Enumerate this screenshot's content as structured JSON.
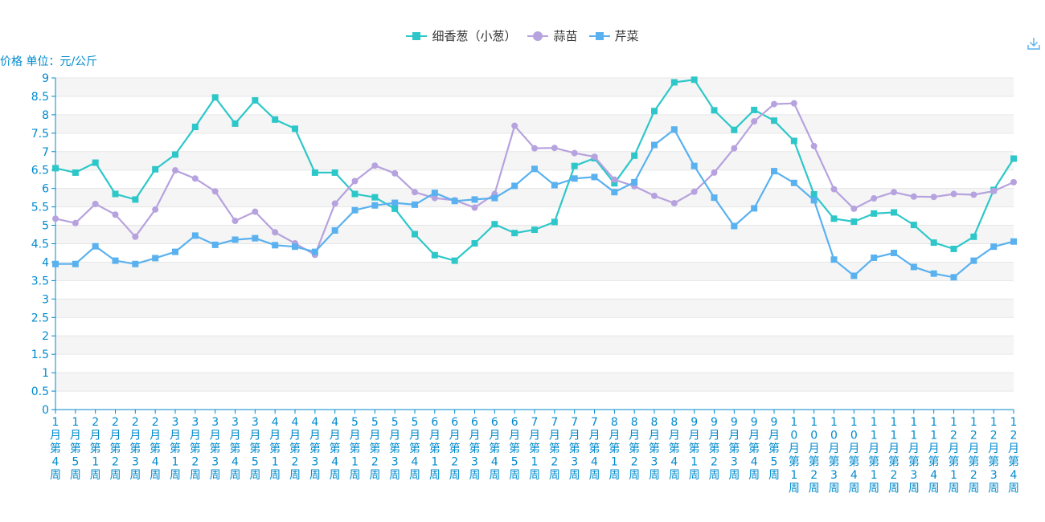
{
  "chart_data": {
    "type": "line",
    "unit_label": "价格 单位：元/公斤",
    "ylim": [
      0,
      9
    ],
    "y_ticks": [
      "0",
      "0.5",
      "1",
      "1.5",
      "2",
      "2.5",
      "3",
      "3.5",
      "4",
      "4.5",
      "5",
      "5.5",
      "6",
      "6.5",
      "7",
      "7.5",
      "8",
      "8.5",
      "9"
    ],
    "categories": [
      "1月第4周",
      "1月第5周",
      "2月第1周",
      "2月第2周",
      "2月第3周",
      "2月第4周",
      "3月第1周",
      "3月第2周",
      "3月第3周",
      "3月第4周",
      "3月第5周",
      "4月第1周",
      "4月第2周",
      "4月第3周",
      "4月第4周",
      "5月第1周",
      "5月第2周",
      "5月第3周",
      "5月第4周",
      "6月第1周",
      "6月第2周",
      "6月第3周",
      "6月第4周",
      "6月第5周",
      "7月第1周",
      "7月第2周",
      "7月第3周",
      "7月第4周",
      "8月第1周",
      "8月第2周",
      "8月第3周",
      "8月第4周",
      "9月第1周",
      "9月第2周",
      "9月第3周",
      "9月第4周",
      "9月第5周",
      "10月第1周",
      "10月第2周",
      "10月第3周",
      "10月第4周",
      "11月第1周",
      "11月第2周",
      "11月第3周",
      "11月第4周",
      "12月第1周",
      "12月第2周",
      "12月第3周",
      "12月第4周"
    ],
    "legend_position": "top-center",
    "grid": "horizontal bands",
    "series": [
      {
        "name": "细香葱（小葱）",
        "color": "#2ec7c9",
        "marker": "square",
        "values": [
          6.55,
          6.43,
          6.7,
          5.85,
          5.7,
          6.52,
          6.92,
          7.67,
          8.47,
          7.76,
          8.39,
          7.87,
          7.62,
          6.43,
          6.43,
          5.85,
          5.76,
          5.45,
          4.76,
          4.19,
          4.04,
          4.51,
          5.03,
          4.79,
          4.88,
          5.09,
          6.61,
          6.82,
          6.14,
          6.89,
          8.1,
          8.88,
          8.95,
          8.12,
          7.59,
          8.13,
          7.84,
          7.29,
          5.84,
          5.18,
          5.1,
          5.32,
          5.35,
          5.01,
          4.53,
          4.36,
          4.69,
          5.96,
          6.81
        ]
      },
      {
        "name": "蒜苗",
        "color": "#b6a2de",
        "marker": "circle",
        "values": [
          5.18,
          5.06,
          5.58,
          5.29,
          4.69,
          5.43,
          6.49,
          6.27,
          5.92,
          5.12,
          5.37,
          4.81,
          4.51,
          4.2,
          5.59,
          6.2,
          6.62,
          6.41,
          5.9,
          5.74,
          5.68,
          5.48,
          5.85,
          7.7,
          7.09,
          7.1,
          6.96,
          6.86,
          6.24,
          6.06,
          5.8,
          5.6,
          5.91,
          6.43,
          7.09,
          7.82,
          8.29,
          8.31,
          7.15,
          5.98,
          5.45,
          5.73,
          5.9,
          5.78,
          5.77,
          5.85,
          5.83,
          5.93,
          6.17
        ]
      },
      {
        "name": "芹菜",
        "color": "#5ab1ef",
        "marker": "square",
        "values": [
          3.95,
          3.95,
          4.43,
          4.04,
          3.95,
          4.11,
          4.28,
          4.72,
          4.47,
          4.61,
          4.65,
          4.46,
          4.42,
          4.28,
          4.86,
          5.41,
          5.54,
          5.61,
          5.56,
          5.88,
          5.66,
          5.7,
          5.74,
          6.07,
          6.53,
          6.09,
          6.27,
          6.31,
          5.9,
          6.17,
          7.18,
          7.6,
          6.61,
          5.75,
          4.98,
          5.46,
          6.47,
          6.15,
          5.68,
          4.07,
          3.63,
          4.12,
          4.25,
          3.87,
          3.69,
          3.59,
          4.04,
          4.42,
          4.56
        ]
      }
    ]
  },
  "colors": {
    "axis": "#008acd",
    "band": "#f5f5f5",
    "gridline": "#e6e6e6",
    "axis_text": "#008acd"
  },
  "toolbox": {
    "download_icon": "download-icon"
  }
}
